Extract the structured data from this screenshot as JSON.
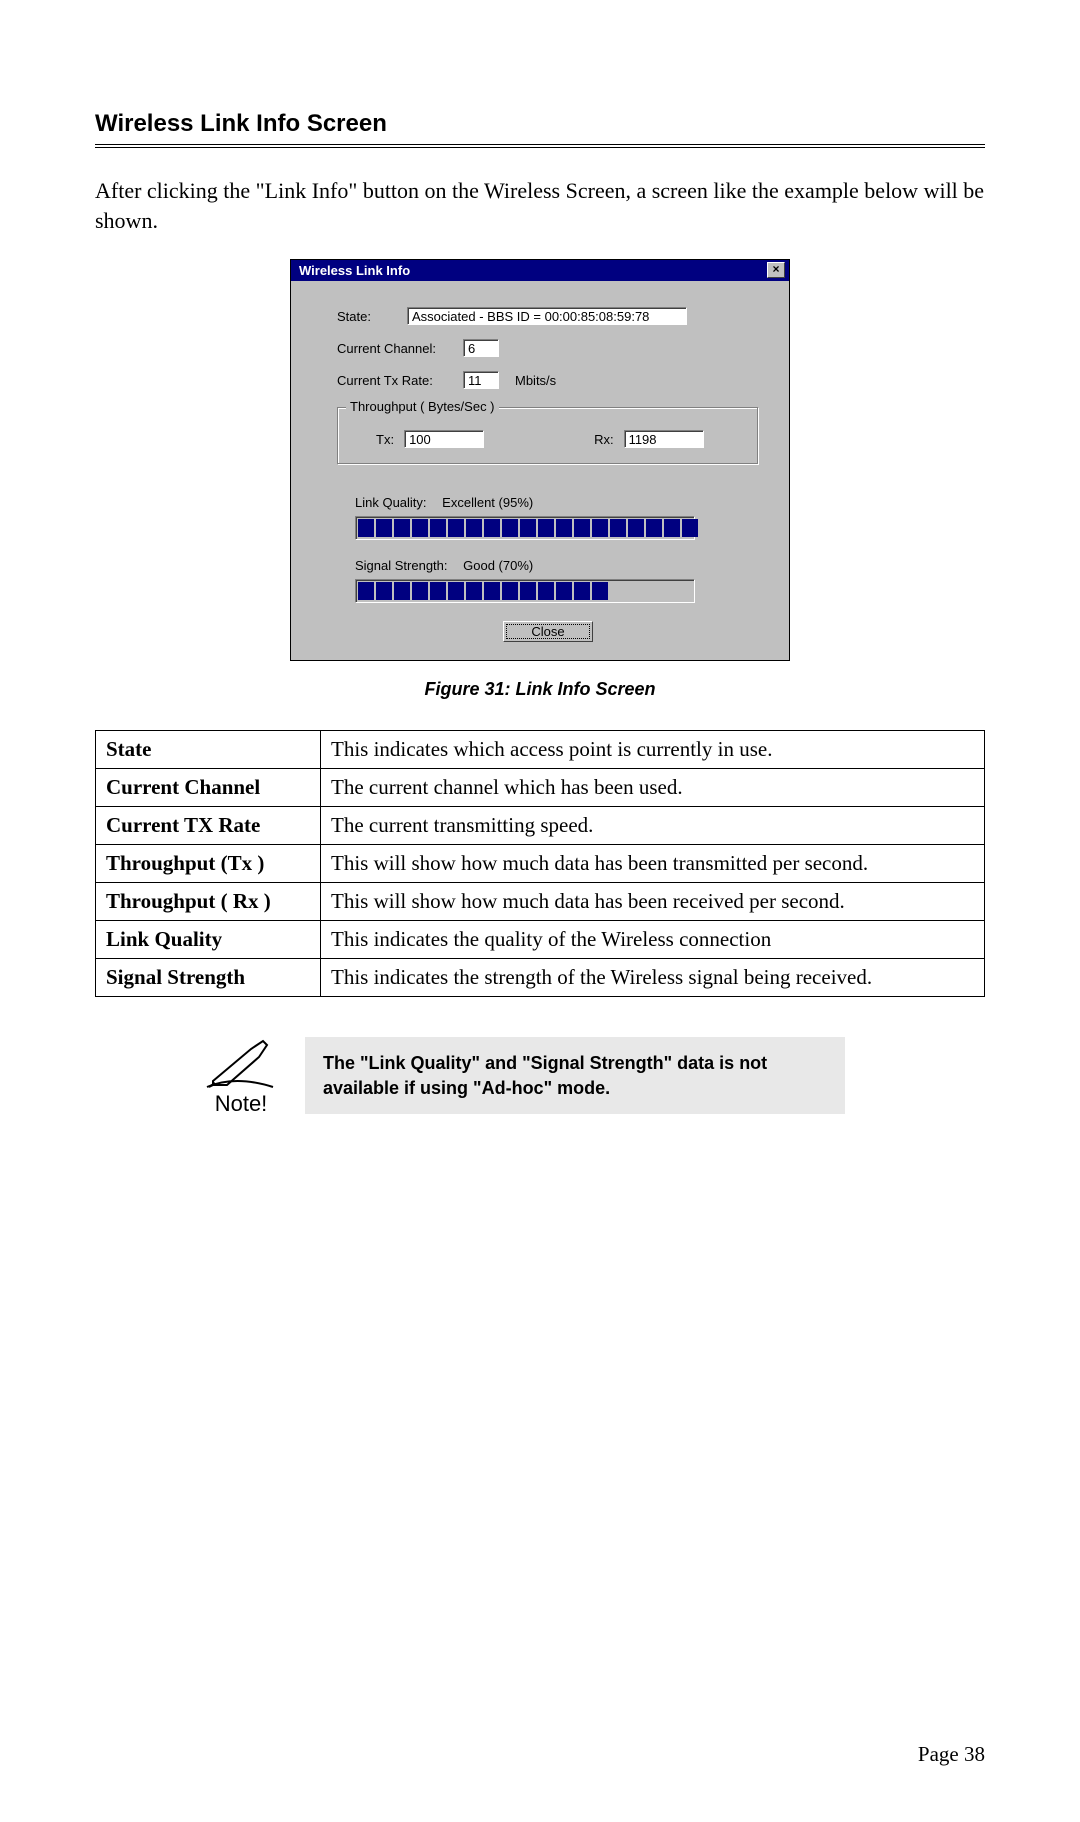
{
  "section_title": "Wireless Link Info Screen",
  "intro": "After clicking the \"Link Info\" button on the Wireless Screen, a screen like the example below will be shown.",
  "dialog": {
    "title": "Wireless Link Info",
    "close_glyph": "×",
    "state_label": "State:",
    "state_value": "Associated - BBS ID = 00:00:85:08:59:78",
    "channel_label": "Current Channel:",
    "channel_value": "6",
    "txrate_label": "Current Tx Rate:",
    "txrate_value": "11",
    "txrate_unit": "Mbits/s",
    "throughput_group": "Throughput ( Bytes/Sec )",
    "tx_label": "Tx:",
    "tx_value": "100",
    "rx_label": "Rx:",
    "rx_value": "1198",
    "link_quality_label": "Link Quality:",
    "link_quality_value": "Excellent (95%)",
    "link_quality_segments_total": 20,
    "link_quality_segments_filled": 19,
    "signal_strength_label": "Signal Strength:",
    "signal_strength_value": "Good (70%)",
    "signal_strength_segments_total": 20,
    "signal_strength_segments_filled": 14,
    "close_button": "Close",
    "colors": {
      "titlebar_bg": "#000080",
      "titlebar_fg": "#ffffff",
      "body_bg": "#c0c0c0",
      "segment_fill": "#000080",
      "field_bg": "#ffffff"
    }
  },
  "figure_caption": "Figure 31: Link Info Screen",
  "table": {
    "rows": [
      {
        "k": "State",
        "v": "This indicates which access point is currently in use."
      },
      {
        "k": "Current Channel",
        "v": "The current channel which has been used."
      },
      {
        "k": "Current TX Rate",
        "v": "The current transmitting speed."
      },
      {
        "k": "Throughput (Tx )",
        "v": "This will show how much data has been transmitted per second."
      },
      {
        "k": "Throughput ( Rx )",
        "v": "This will show how much data has been received per second."
      },
      {
        "k": "Link Quality",
        "v": "This indicates the quality of the Wireless connection"
      },
      {
        "k": "Signal Strength",
        "v": "This indicates the strength of the Wireless signal being received."
      }
    ]
  },
  "note": {
    "caption": "Note!",
    "text": "The \"Link Quality\" and \"Signal Strength\" data is not available if using \"Ad-hoc\" mode."
  },
  "page_number": "Page 38"
}
